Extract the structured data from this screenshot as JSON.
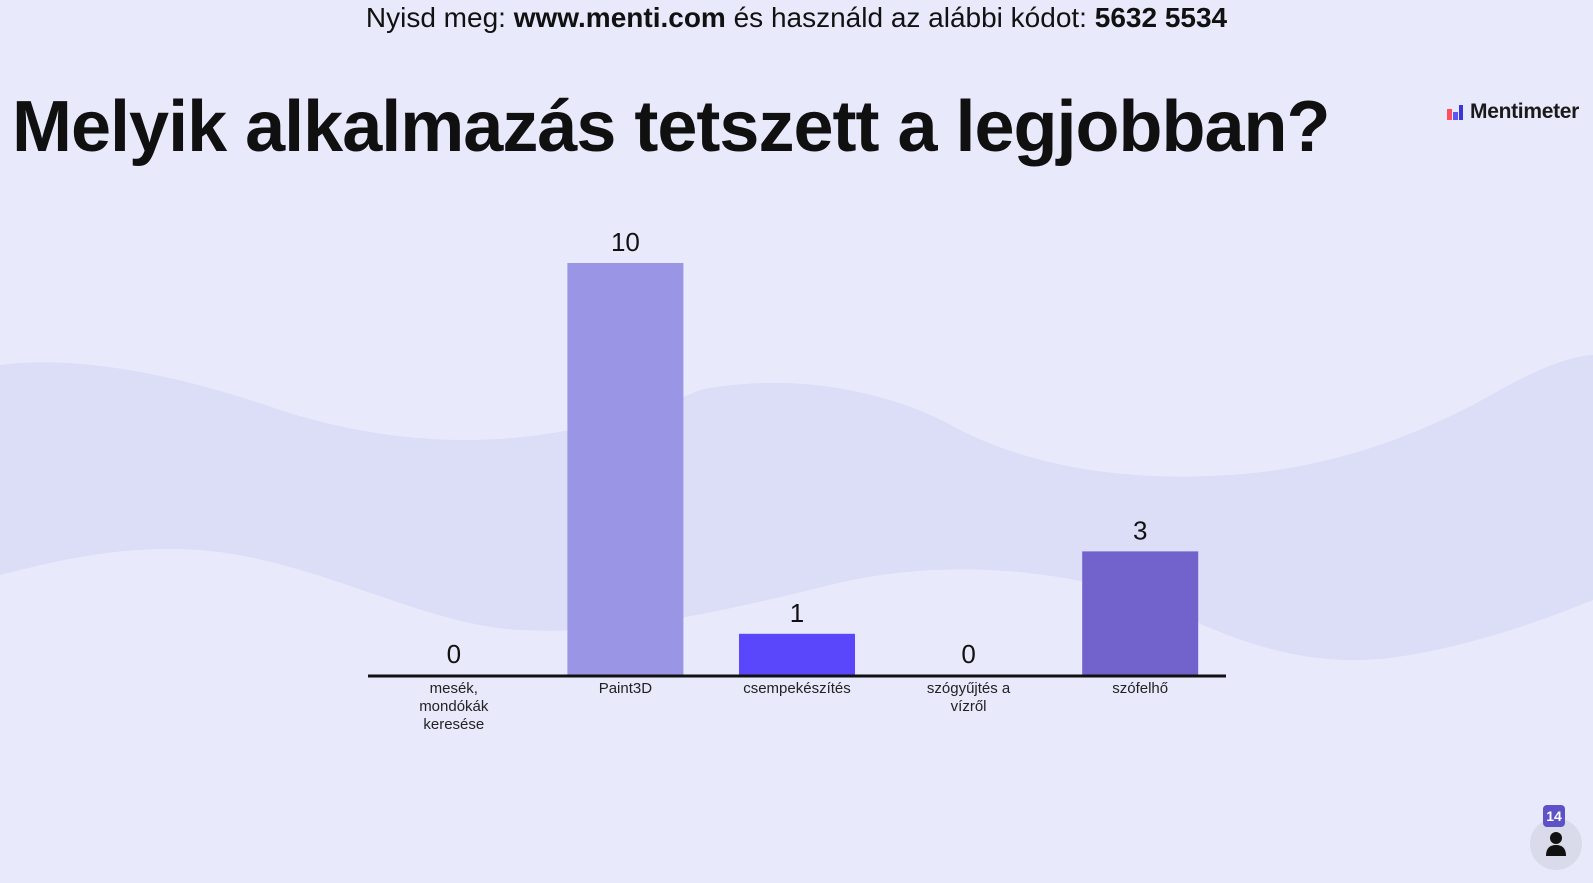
{
  "join": {
    "prefix": "Nyisd meg: ",
    "url": "www.menti.com",
    "middle": " és használd az alábbi kódot: ",
    "code": "5632 5534"
  },
  "question": "Melyik alkalmazás tetszett a legjobban?",
  "brand": {
    "name": "Mentimeter",
    "logo_colors": [
      "#FF4F5E",
      "#5A56EF",
      "#3B36D8"
    ]
  },
  "participants": {
    "count": "14",
    "icon": "person-icon"
  },
  "colors": {
    "background": "#E8EAFC",
    "wave": "#DCDDF6"
  },
  "chart_data": {
    "type": "bar",
    "categories": [
      "mesék,\nmondókák\nkeresése",
      "Paint3D",
      "csempekészítés",
      "szógyűjtés a\nvízről",
      "szófelhő"
    ],
    "values": [
      0,
      10,
      1,
      0,
      3
    ],
    "colors": [
      "#9A96E5",
      "#9A96E5",
      "#5B47FB",
      "#9A96E5",
      "#7262CB"
    ],
    "ylim": [
      0,
      10
    ],
    "grid": false,
    "legend": "none",
    "data_labels": true
  }
}
